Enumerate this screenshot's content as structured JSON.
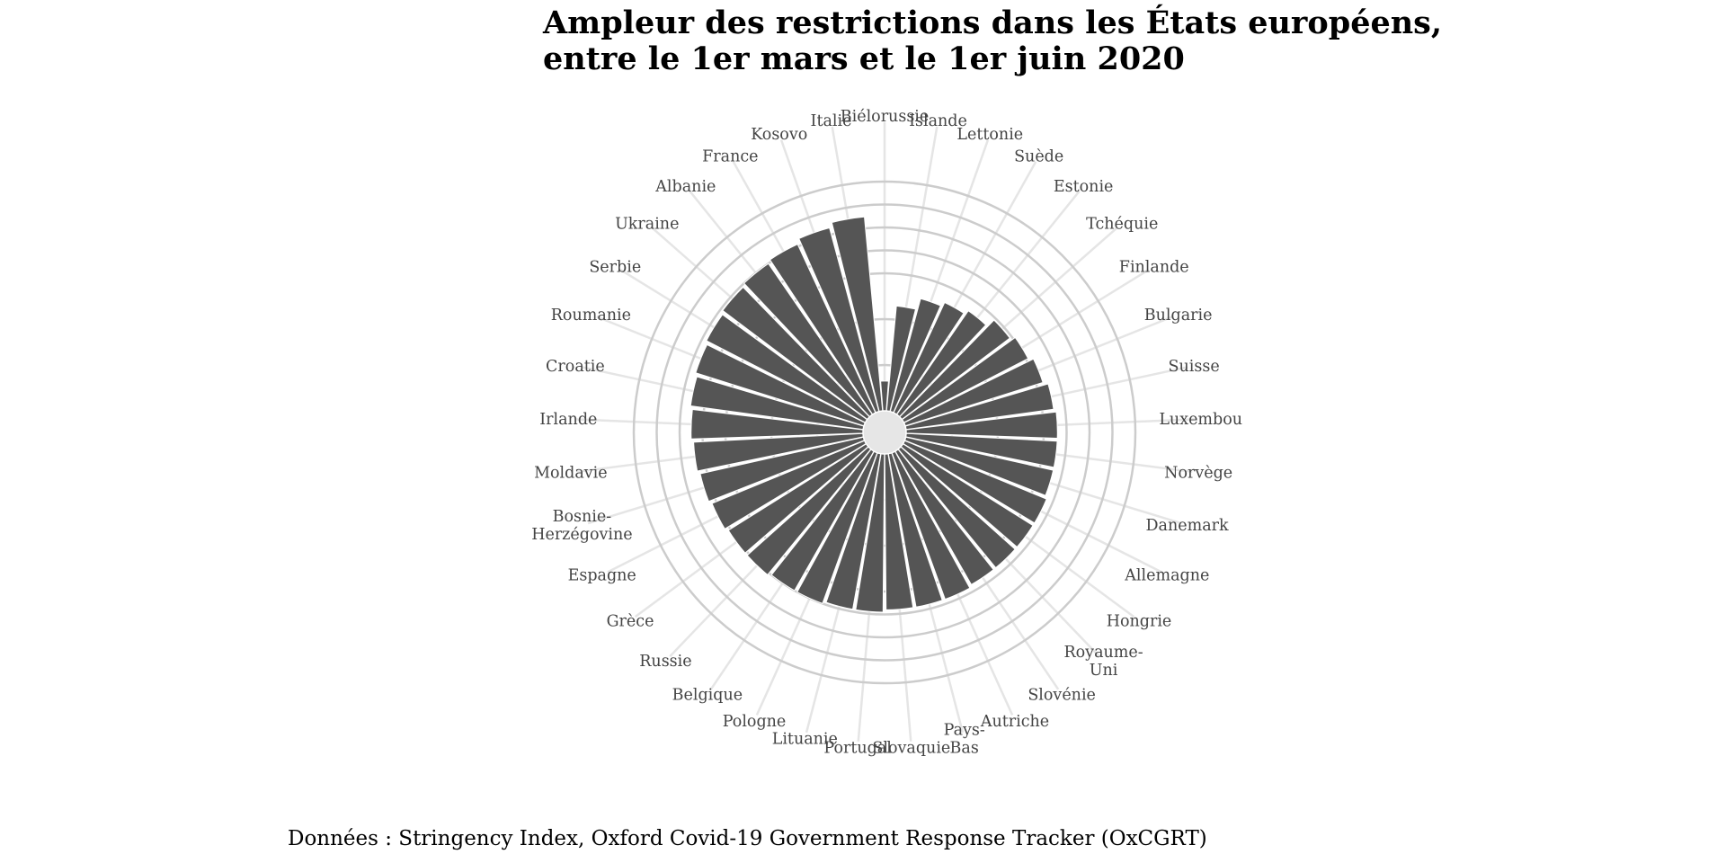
{
  "chart_data": {
    "type": "bar",
    "polar": true,
    "title_lines": [
      "Ampleur des restrictions dans les États européens,",
      "entre le 1er mars et le 1er juin 2020"
    ],
    "caption": "Données : Stringency Index, Oxford Covid-19 Government Response Tracker (OxCGRT)",
    "grid": true,
    "categories": [
      [
        "Biélorussie"
      ],
      [
        "Islande"
      ],
      [
        "Lettonie"
      ],
      [
        "Suède"
      ],
      [
        "Estonie"
      ],
      [
        "Tchéquie"
      ],
      [
        "Finlande"
      ],
      [
        "Bulgarie"
      ],
      [
        "Suisse"
      ],
      [
        "Luxembou"
      ],
      [
        "Norvège"
      ],
      [
        "Danemark"
      ],
      [
        "Allemagne"
      ],
      [
        "Hongrie"
      ],
      [
        "Royaume-",
        "Uni"
      ],
      [
        "Slovénie"
      ],
      [
        "Autriche"
      ],
      [
        "Pays-",
        "Bas"
      ],
      [
        "Slovaquie"
      ],
      [
        "Portugal"
      ],
      [
        "Lituanie"
      ],
      [
        "Pologne"
      ],
      [
        "Belgique"
      ],
      [
        "Russie"
      ],
      [
        "Grèce"
      ],
      [
        "Espagne"
      ],
      [
        "Bosnie-",
        "Herzégovine"
      ],
      [
        "Moldavie"
      ],
      [
        "Irlande"
      ],
      [
        "Croatie"
      ],
      [
        "Roumanie"
      ],
      [
        "Serbie"
      ],
      [
        "Ukraine"
      ],
      [
        "Albanie"
      ],
      [
        "France"
      ],
      [
        "Kosovo"
      ],
      [
        "Italie"
      ]
    ],
    "values": [
      13,
      46,
      51,
      53,
      55,
      59,
      61,
      63,
      65,
      66,
      66,
      66,
      67,
      67,
      67,
      67,
      68,
      68,
      68,
      69,
      69,
      70,
      70,
      71,
      71,
      72,
      73,
      74,
      75,
      76,
      77,
      78,
      79,
      80,
      81,
      83,
      85
    ],
    "rlim": [
      0,
      100
    ],
    "colors": {
      "bar": "#555555",
      "grid_ring": "#cccccc",
      "grid_spoke": "#e5e5e5",
      "label": "#444444",
      "center": "#e6e6e6"
    }
  }
}
